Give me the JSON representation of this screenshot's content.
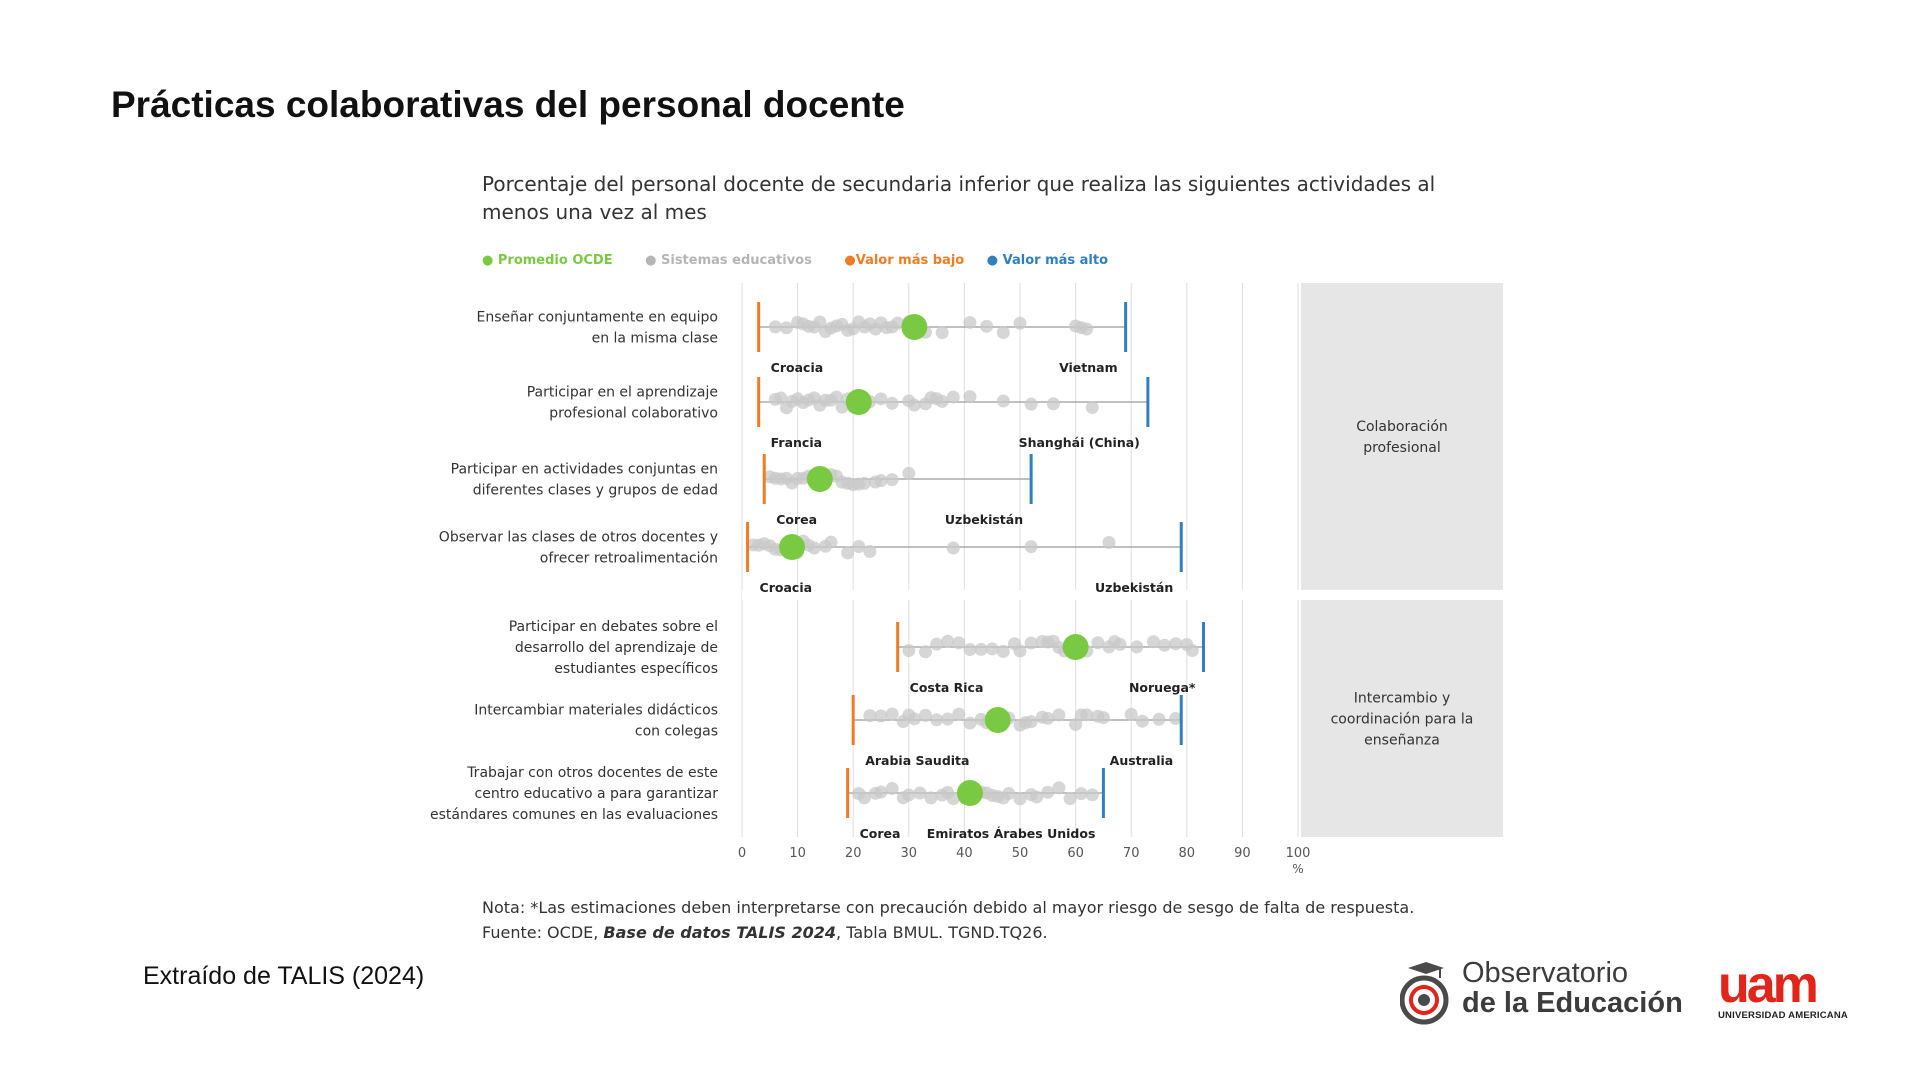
{
  "slide": {
    "title": "Prácticas colaborativas del personal docente",
    "source_caption": "Extraído de TALIS (2024)"
  },
  "chart_data": {
    "type": "scatter",
    "title": "Porcentaje del personal docente de secundaria inferior que realiza las siguientes actividades al menos una vez al mes",
    "xlabel": "%",
    "xlim": [
      0,
      100
    ],
    "xticks": [
      0,
      10,
      20,
      30,
      40,
      50,
      60,
      70,
      80,
      90,
      100
    ],
    "grid": true,
    "legend": {
      "placement": "top-left",
      "entries": [
        {
          "label": "Promedio OCDE",
          "color": "#7ac943"
        },
        {
          "label": "Sistemas educativos",
          "color": "#b5b5b5"
        },
        {
          "label": "Valor más bajo",
          "color": "#f07b24"
        },
        {
          "label": "Valor más alto",
          "color": "#2f7fc1"
        }
      ]
    },
    "groups": [
      {
        "label_lines": [
          "Colaboración",
          "profesional"
        ],
        "rows": [
          0,
          1,
          2,
          3
        ]
      },
      {
        "label_lines": [
          "Intercambio y",
          "coordinación para la",
          "enseñanza"
        ],
        "rows": [
          4,
          5,
          6
        ]
      }
    ],
    "rows": [
      {
        "label_lines": [
          "Enseñar conjuntamente en equipo",
          "en la misma clase"
        ],
        "min": 3,
        "min_label": "Croacia",
        "max": 69,
        "max_label": "Vietnam",
        "oecd": 31,
        "systems": [
          6,
          8,
          10,
          11,
          12,
          13,
          14,
          15,
          16,
          17,
          18,
          19,
          20,
          21,
          22,
          23,
          24,
          25,
          26,
          27,
          28,
          30,
          33,
          36,
          41,
          44,
          47,
          50,
          60,
          61,
          62
        ]
      },
      {
        "label_lines": [
          "Participar en el aprendizaje",
          "profesional colaborativo"
        ],
        "min": 3,
        "min_label": "Francia",
        "max": 73,
        "max_label": "Shanghái (China)",
        "oecd": 21,
        "systems": [
          6,
          7,
          8,
          9,
          10,
          11,
          12,
          13,
          14,
          15,
          16,
          17,
          18,
          19,
          20,
          23,
          25,
          27,
          30,
          31,
          33,
          34,
          35,
          36,
          38,
          41,
          47,
          52,
          56,
          63
        ]
      },
      {
        "label_lines": [
          "Participar en actividades conjuntas en",
          "diferentes clases y grupos de edad"
        ],
        "min": 4,
        "min_label": "Corea",
        "max": 52,
        "max_label": "Uzbekistán",
        "oecd": 14,
        "systems": [
          5,
          6,
          7,
          8,
          9,
          10,
          11,
          12,
          13,
          15,
          16,
          17,
          18,
          19,
          20,
          21,
          22,
          24,
          25,
          27,
          30
        ]
      },
      {
        "label_lines": [
          "Observar las clases de otros docentes y",
          "ofrecer retroalimentación"
        ],
        "min": 1,
        "min_label": "Croacia",
        "max": 79,
        "max_label": "Uzbekistán",
        "oecd": 9,
        "systems": [
          2,
          3,
          4,
          5,
          6,
          7,
          8,
          10,
          11,
          12,
          13,
          15,
          16,
          19,
          21,
          23,
          38,
          52,
          66
        ]
      },
      {
        "label_lines": [
          "Participar en debates sobre el",
          "desarrollo del aprendizaje de",
          "estudiantes específicos"
        ],
        "min": 28,
        "min_label": "Costa Rica",
        "max": 83,
        "max_label": "Noruega*",
        "oecd": 60,
        "systems": [
          30,
          33,
          35,
          37,
          39,
          41,
          43,
          45,
          47,
          49,
          50,
          52,
          54,
          55,
          56,
          57,
          58,
          62,
          64,
          66,
          67,
          68,
          71,
          74,
          76,
          78,
          80,
          81
        ]
      },
      {
        "label_lines": [
          "Intercambiar materiales didácticos",
          "con colegas"
        ],
        "min": 20,
        "min_label": "Arabia Saudita",
        "max": 79,
        "max_label": "Australia",
        "oecd": 46,
        "systems": [
          23,
          25,
          27,
          29,
          30,
          31,
          33,
          35,
          37,
          39,
          41,
          43,
          44,
          48,
          50,
          51,
          52,
          54,
          55,
          57,
          60,
          61,
          62,
          64,
          65,
          70,
          72,
          75,
          78
        ]
      },
      {
        "label_lines": [
          "Trabajar con otros docentes de este",
          "centro educativo a para garantizar",
          "estándares comunes en las evaluaciones"
        ],
        "min": 19,
        "min_label": "Corea",
        "max": 65,
        "max_label": "Emiratos Árabes Unidos",
        "oecd": 41,
        "systems": [
          21,
          22,
          24,
          25,
          27,
          29,
          30,
          32,
          34,
          36,
          37,
          38,
          40,
          43,
          44,
          45,
          46,
          47,
          48,
          50,
          52,
          53,
          55,
          57,
          59,
          61,
          63
        ]
      }
    ]
  },
  "notes": {
    "note": "Nota: *Las estimaciones deben interpretarse con precaución debido al mayor riesgo de sesgo de falta de respuesta.",
    "source_prefix": "Fuente: OCDE, ",
    "source_db": "Base de datos TALIS 2024",
    "source_suffix": ", Tabla BMUL. TGND.TQ26."
  },
  "logos": {
    "observatorio_line1": "Observatorio",
    "observatorio_line2": "de la Educación",
    "uam_mark": "uam",
    "uam_sub": "UNIVERSIDAD AMERICANA"
  },
  "colors": {
    "oecd": "#7ac943",
    "systems": "#c8c8c8",
    "min": "#f07b24",
    "max": "#2f7fc1",
    "group_panel": "#e6e6e6",
    "uam_red": "#e1251b"
  }
}
